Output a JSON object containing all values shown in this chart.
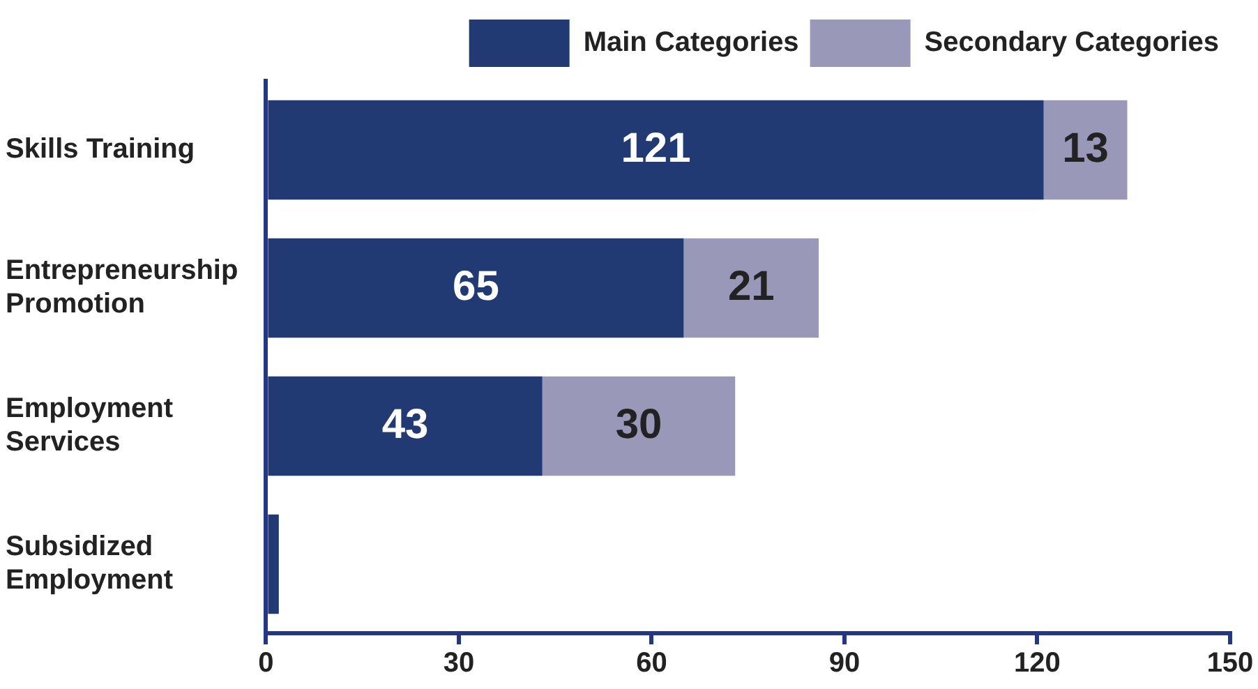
{
  "chart_data": {
    "type": "bar",
    "orientation": "horizontal",
    "stacked": true,
    "categories": [
      "Skills Training",
      "Entrepreneurship Promotion",
      "Employment Services",
      "Subsidized Employment"
    ],
    "series": [
      {
        "name": "Main Categories",
        "color": "#213a73",
        "values": [
          121,
          65,
          43,
          2
        ],
        "value_labels": [
          "121",
          "65",
          "43",
          null
        ]
      },
      {
        "name": "Secondary Categories",
        "color": "#9998b8",
        "values": [
          13,
          21,
          30,
          null
        ],
        "value_labels": [
          "13",
          "21",
          "30",
          null
        ]
      }
    ],
    "xlim": [
      0,
      150
    ],
    "xticks": [
      0,
      30,
      60,
      90,
      120,
      150
    ],
    "grid": false,
    "legend": "top right"
  }
}
